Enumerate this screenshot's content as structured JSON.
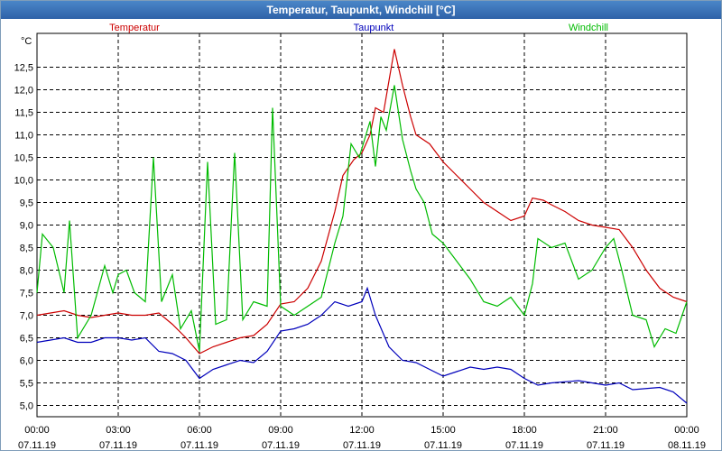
{
  "window": {
    "title": "Temperatur, Taupunkt, Windchill [°C]"
  },
  "chart_data": {
    "type": "line",
    "ylabel": "°C",
    "ylim": [
      4.75,
      13.25
    ],
    "yticks": [
      "5,0",
      "5,5",
      "6,0",
      "6,5",
      "7,0",
      "7,5",
      "8,0",
      "8,5",
      "9,0",
      "9,5",
      "10,0",
      "10,5",
      "11,0",
      "11,5",
      "12,0",
      "12,5"
    ],
    "xlim": [
      0,
      24
    ],
    "xticks": [
      {
        "time": "00:00",
        "date": "07.11.19"
      },
      {
        "time": "03:00",
        "date": "07.11.19"
      },
      {
        "time": "06:00",
        "date": "07.11.19"
      },
      {
        "time": "09:00",
        "date": "07.11.19"
      },
      {
        "time": "12:00",
        "date": "07.11.19"
      },
      {
        "time": "15:00",
        "date": "07.11.19"
      },
      {
        "time": "18:00",
        "date": "07.11.19"
      },
      {
        "time": "21:00",
        "date": "07.11.19"
      },
      {
        "time": "00:00",
        "date": "08.11.19"
      }
    ],
    "grid": true,
    "series": [
      {
        "name": "Temperatur",
        "color": "#cc0000",
        "points": [
          [
            0,
            7.0
          ],
          [
            0.5,
            7.05
          ],
          [
            1.0,
            7.1
          ],
          [
            1.5,
            7.0
          ],
          [
            2.0,
            6.95
          ],
          [
            2.5,
            7.0
          ],
          [
            3.0,
            7.05
          ],
          [
            3.5,
            7.0
          ],
          [
            4.0,
            7.0
          ],
          [
            4.5,
            7.05
          ],
          [
            5.0,
            6.8
          ],
          [
            5.5,
            6.5
          ],
          [
            6.0,
            6.15
          ],
          [
            6.5,
            6.3
          ],
          [
            7.0,
            6.4
          ],
          [
            7.5,
            6.5
          ],
          [
            8.0,
            6.55
          ],
          [
            8.5,
            6.8
          ],
          [
            9.0,
            7.25
          ],
          [
            9.5,
            7.3
          ],
          [
            10.0,
            7.6
          ],
          [
            10.5,
            8.2
          ],
          [
            11.0,
            9.3
          ],
          [
            11.3,
            10.1
          ],
          [
            11.7,
            10.45
          ],
          [
            12.0,
            10.6
          ],
          [
            12.3,
            11.0
          ],
          [
            12.5,
            11.6
          ],
          [
            12.8,
            11.5
          ],
          [
            13.0,
            12.2
          ],
          [
            13.2,
            12.9
          ],
          [
            13.5,
            12.1
          ],
          [
            13.8,
            11.4
          ],
          [
            14.0,
            11.0
          ],
          [
            14.5,
            10.8
          ],
          [
            15.0,
            10.4
          ],
          [
            15.5,
            10.1
          ],
          [
            16.0,
            9.8
          ],
          [
            16.5,
            9.5
          ],
          [
            17.0,
            9.3
          ],
          [
            17.5,
            9.1
          ],
          [
            18.0,
            9.2
          ],
          [
            18.3,
            9.6
          ],
          [
            18.7,
            9.55
          ],
          [
            19.0,
            9.45
          ],
          [
            19.5,
            9.3
          ],
          [
            20.0,
            9.1
          ],
          [
            20.5,
            9.0
          ],
          [
            21.0,
            8.95
          ],
          [
            21.5,
            8.9
          ],
          [
            22.0,
            8.5
          ],
          [
            22.5,
            8.0
          ],
          [
            23.0,
            7.6
          ],
          [
            23.5,
            7.4
          ],
          [
            24.0,
            7.3
          ]
        ]
      },
      {
        "name": "Taupunkt",
        "color": "#0000bb",
        "points": [
          [
            0,
            6.4
          ],
          [
            0.5,
            6.45
          ],
          [
            1.0,
            6.5
          ],
          [
            1.5,
            6.4
          ],
          [
            2.0,
            6.4
          ],
          [
            2.5,
            6.5
          ],
          [
            3.0,
            6.5
          ],
          [
            3.5,
            6.45
          ],
          [
            4.0,
            6.5
          ],
          [
            4.5,
            6.2
          ],
          [
            5.0,
            6.15
          ],
          [
            5.5,
            6.0
          ],
          [
            6.0,
            5.6
          ],
          [
            6.5,
            5.8
          ],
          [
            7.0,
            5.9
          ],
          [
            7.5,
            6.0
          ],
          [
            8.0,
            5.95
          ],
          [
            8.5,
            6.2
          ],
          [
            9.0,
            6.65
          ],
          [
            9.5,
            6.7
          ],
          [
            10.0,
            6.8
          ],
          [
            10.5,
            7.0
          ],
          [
            11.0,
            7.3
          ],
          [
            11.5,
            7.2
          ],
          [
            12.0,
            7.3
          ],
          [
            12.2,
            7.6
          ],
          [
            12.5,
            7.0
          ],
          [
            13.0,
            6.3
          ],
          [
            13.5,
            6.0
          ],
          [
            14.0,
            5.95
          ],
          [
            14.5,
            5.8
          ],
          [
            15.0,
            5.65
          ],
          [
            15.5,
            5.75
          ],
          [
            16.0,
            5.85
          ],
          [
            16.5,
            5.8
          ],
          [
            17.0,
            5.85
          ],
          [
            17.5,
            5.8
          ],
          [
            18.0,
            5.6
          ],
          [
            18.5,
            5.45
          ],
          [
            19.0,
            5.5
          ],
          [
            20.0,
            5.55
          ],
          [
            20.5,
            5.5
          ],
          [
            21.0,
            5.45
          ],
          [
            21.5,
            5.5
          ],
          [
            22.0,
            5.35
          ],
          [
            23.0,
            5.4
          ],
          [
            23.5,
            5.3
          ],
          [
            24.0,
            5.05
          ]
        ]
      },
      {
        "name": "Windchill",
        "color": "#00bb00",
        "points": [
          [
            0,
            7.5
          ],
          [
            0.2,
            8.8
          ],
          [
            0.6,
            8.5
          ],
          [
            1.0,
            7.5
          ],
          [
            1.2,
            9.1
          ],
          [
            1.5,
            6.5
          ],
          [
            2.0,
            7.0
          ],
          [
            2.5,
            8.1
          ],
          [
            2.8,
            7.5
          ],
          [
            3.0,
            7.9
          ],
          [
            3.3,
            8.0
          ],
          [
            3.6,
            7.5
          ],
          [
            4.0,
            7.3
          ],
          [
            4.3,
            10.5
          ],
          [
            4.6,
            7.3
          ],
          [
            5.0,
            7.9
          ],
          [
            5.3,
            6.7
          ],
          [
            5.7,
            7.1
          ],
          [
            6.0,
            6.2
          ],
          [
            6.3,
            10.4
          ],
          [
            6.6,
            6.8
          ],
          [
            7.0,
            6.9
          ],
          [
            7.3,
            10.6
          ],
          [
            7.6,
            6.9
          ],
          [
            8.0,
            7.3
          ],
          [
            8.5,
            7.2
          ],
          [
            8.7,
            11.6
          ],
          [
            9.0,
            7.2
          ],
          [
            9.5,
            7.0
          ],
          [
            10.0,
            7.2
          ],
          [
            10.5,
            7.4
          ],
          [
            11.0,
            8.6
          ],
          [
            11.3,
            9.2
          ],
          [
            11.6,
            10.8
          ],
          [
            11.9,
            10.5
          ],
          [
            12.1,
            10.9
          ],
          [
            12.3,
            11.3
          ],
          [
            12.5,
            10.3
          ],
          [
            12.7,
            11.4
          ],
          [
            12.9,
            11.1
          ],
          [
            13.2,
            12.1
          ],
          [
            13.5,
            10.9
          ],
          [
            13.8,
            10.2
          ],
          [
            14.0,
            9.8
          ],
          [
            14.3,
            9.5
          ],
          [
            14.6,
            8.8
          ],
          [
            15.0,
            8.6
          ],
          [
            15.5,
            8.2
          ],
          [
            16.0,
            7.8
          ],
          [
            16.5,
            7.3
          ],
          [
            17.0,
            7.2
          ],
          [
            17.5,
            7.4
          ],
          [
            18.0,
            7.0
          ],
          [
            18.3,
            7.7
          ],
          [
            18.5,
            8.7
          ],
          [
            19.0,
            8.5
          ],
          [
            19.5,
            8.6
          ],
          [
            20.0,
            7.8
          ],
          [
            20.5,
            8.0
          ],
          [
            21.0,
            8.5
          ],
          [
            21.3,
            8.7
          ],
          [
            21.6,
            8.0
          ],
          [
            22.0,
            7.0
          ],
          [
            22.5,
            6.9
          ],
          [
            22.8,
            6.3
          ],
          [
            23.2,
            6.7
          ],
          [
            23.6,
            6.6
          ],
          [
            24.0,
            7.3
          ]
        ]
      }
    ]
  }
}
